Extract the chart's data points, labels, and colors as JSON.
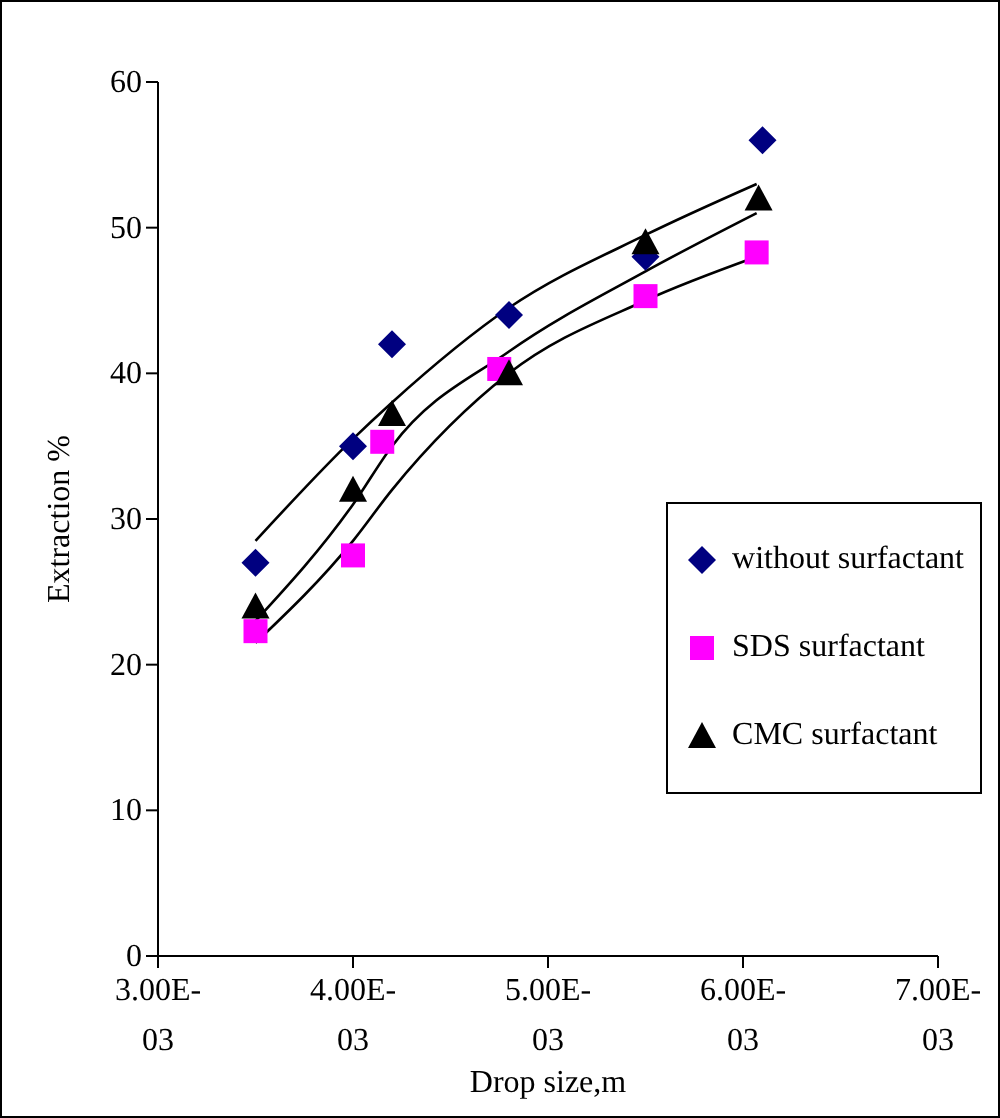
{
  "chart_data": {
    "type": "scatter",
    "xlabel": "Drop size,m",
    "ylabel": "Extraction %",
    "xlim": [
      0.003,
      0.007
    ],
    "xticks": [
      {
        "value": 0.003,
        "label": "3.00E-03"
      },
      {
        "value": 0.004,
        "label": "4.00E-03"
      },
      {
        "value": 0.005,
        "label": "5.00E-03"
      },
      {
        "value": 0.006,
        "label": "6.00E-03"
      },
      {
        "value": 0.007,
        "label": "7.00E-03"
      }
    ],
    "ylim": [
      0,
      60
    ],
    "yticks": [
      0,
      10,
      20,
      30,
      40,
      50,
      60
    ],
    "grid": false,
    "legend": "right",
    "series": [
      {
        "name": "without surfactant",
        "color": "#000080",
        "marker": "diamond",
        "x": [
          0.0035,
          0.004,
          0.0042,
          0.0048,
          0.0055,
          0.0061
        ],
        "values": [
          27,
          35,
          42,
          44,
          48,
          56
        ]
      },
      {
        "name": "SDS surfactant",
        "color": "#ff00ff",
        "marker": "square",
        "x": [
          0.0035,
          0.004,
          0.00415,
          0.00475,
          0.0055,
          0.00607
        ],
        "values": [
          22.3,
          27.5,
          35.3,
          40.3,
          45.3,
          48.3
        ]
      },
      {
        "name": "CMC surfactant",
        "color": "#000000",
        "marker": "triangle",
        "x": [
          0.0035,
          0.004,
          0.0042,
          0.0048,
          0.0055,
          0.00608
        ],
        "values": [
          24,
          32,
          37.2,
          40,
          49,
          52
        ]
      },
      {
        "type": "line",
        "color": "#000000",
        "marker": "none",
        "x": [
          0.0035,
          0.004,
          0.0042,
          0.0048,
          0.0055,
          0.00607
        ],
        "values": [
          28.5,
          35.5,
          38,
          44.5,
          49.5,
          53
        ]
      },
      {
        "type": "line",
        "color": "#000000",
        "marker": "none",
        "x": [
          0.0035,
          0.004,
          0.0042,
          0.0048,
          0.0055,
          0.00607
        ],
        "values": [
          23,
          31,
          35,
          41.5,
          47,
          51
        ]
      },
      {
        "type": "line",
        "color": "#000000",
        "marker": "none",
        "x": [
          0.0035,
          0.004,
          0.0042,
          0.0048,
          0.0055,
          0.00607
        ],
        "values": [
          21.5,
          28.5,
          32,
          40,
          45,
          48
        ]
      }
    ]
  }
}
